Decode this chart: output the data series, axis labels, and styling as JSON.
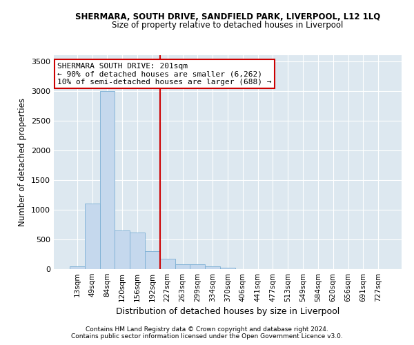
{
  "title": "SHERMARA, SOUTH DRIVE, SANDFIELD PARK, LIVERPOOL, L12 1LQ",
  "subtitle": "Size of property relative to detached houses in Liverpool",
  "xlabel": "Distribution of detached houses by size in Liverpool",
  "ylabel": "Number of detached properties",
  "bar_color": "#c5d8ed",
  "bar_edge_color": "#7aafd4",
  "bg_color": "#dde8f0",
  "categories": [
    "13sqm",
    "49sqm",
    "84sqm",
    "120sqm",
    "156sqm",
    "192sqm",
    "227sqm",
    "263sqm",
    "299sqm",
    "334sqm",
    "370sqm",
    "406sqm",
    "441sqm",
    "477sqm",
    "513sqm",
    "549sqm",
    "584sqm",
    "620sqm",
    "656sqm",
    "691sqm",
    "727sqm"
  ],
  "values": [
    50,
    1100,
    3000,
    650,
    610,
    300,
    175,
    80,
    80,
    50,
    25,
    5,
    5,
    5,
    5,
    0,
    0,
    0,
    0,
    0,
    0
  ],
  "ylim": [
    0,
    3600
  ],
  "yticks": [
    0,
    500,
    1000,
    1500,
    2000,
    2500,
    3000,
    3500
  ],
  "vline_x": 5.5,
  "vline_color": "#cc0000",
  "annotation_text": "SHERMARA SOUTH DRIVE: 201sqm\n← 90% of detached houses are smaller (6,262)\n10% of semi-detached houses are larger (688) →",
  "annotation_box_color": "#ffffff",
  "annotation_box_edge": "#cc0000",
  "footer1": "Contains HM Land Registry data © Crown copyright and database right 2024.",
  "footer2": "Contains public sector information licensed under the Open Government Licence v3.0."
}
